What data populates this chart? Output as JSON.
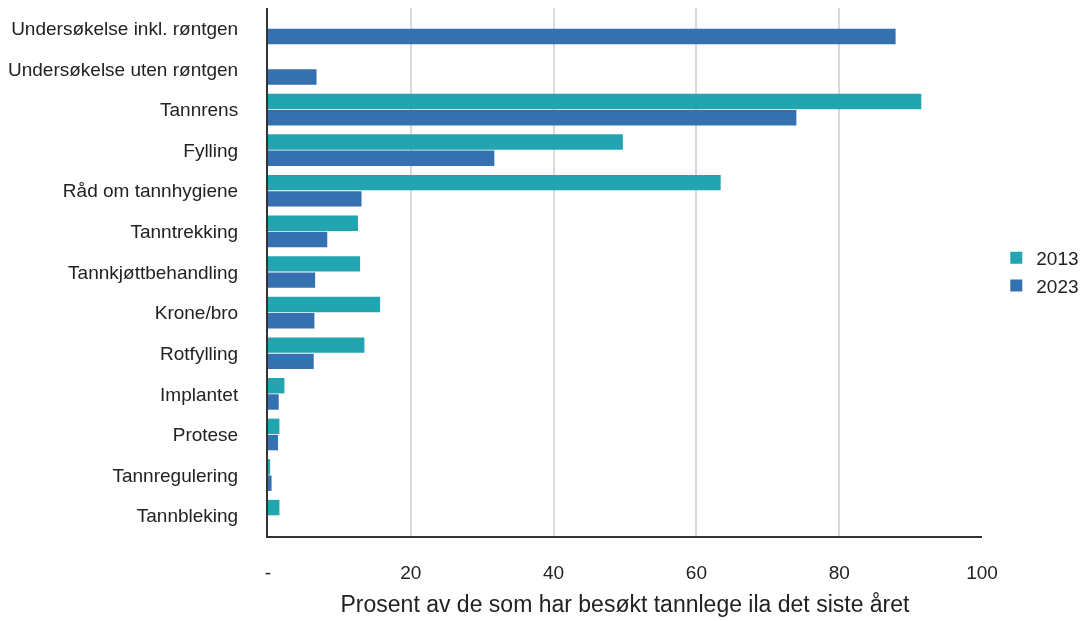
{
  "chart_data": {
    "type": "bar",
    "orientation": "horizontal",
    "xlabel": "Prosent av de som har besøkt tannlege ila det siste året",
    "categories": [
      "Undersøkelse inkl. røntgen",
      "Undersøkelse uten røntgen",
      "Tannrens",
      "Fylling",
      "Råd om tannhygiene",
      "Tanntrekking",
      "Tannkjøttbehandling",
      "Krone/bro",
      "Rotfylling",
      "Implantet",
      "Protese",
      "Tannregulering",
      "Tannbleking"
    ],
    "series": [
      {
        "name": "2013",
        "color": "#22a5b0",
        "values": [
          null,
          null,
          91.5,
          49.7,
          63.4,
          12.6,
          12.9,
          15.7,
          13.5,
          2.3,
          1.6,
          0.3,
          1.6
        ]
      },
      {
        "name": "2023",
        "color": "#3570b0",
        "values": [
          87.9,
          6.8,
          74.0,
          31.7,
          13.1,
          8.3,
          6.6,
          6.5,
          6.4,
          1.5,
          1.4,
          0.5,
          null
        ]
      }
    ],
    "xlim": [
      0,
      100
    ],
    "xticks": [
      {
        "value": 0,
        "label": "-"
      },
      20,
      40,
      60,
      80,
      100
    ],
    "grid": "x",
    "legend": "right"
  }
}
